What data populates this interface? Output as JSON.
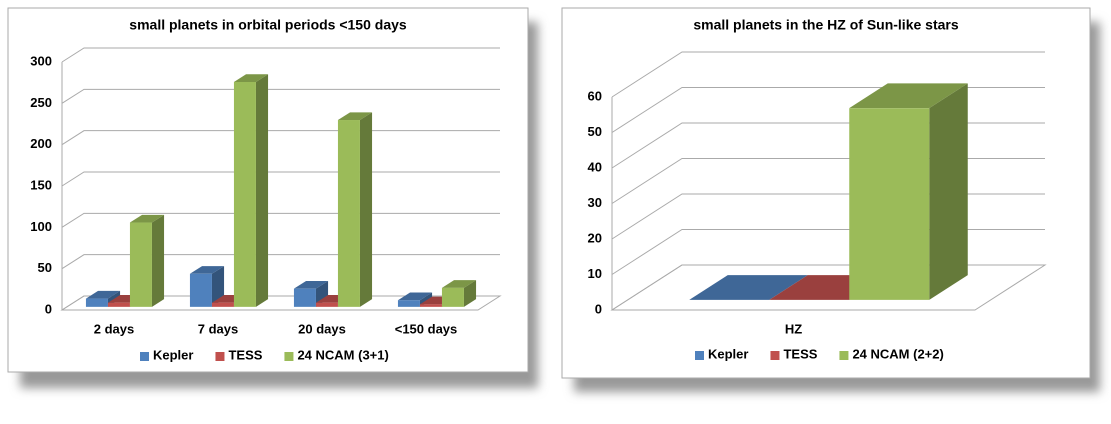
{
  "chart_data": [
    {
      "type": "bar3d",
      "title": "small planets in orbital periods <150 days",
      "categories": [
        "2 days",
        "7 days",
        "20 days",
        "<150 days"
      ],
      "series": [
        {
          "name": "Kepler",
          "color": "#4f81bd",
          "values": [
            10,
            40,
            22,
            8
          ]
        },
        {
          "name": "TESS",
          "color": "#c0504d",
          "values": [
            5,
            5,
            5,
            3
          ]
        },
        {
          "name": "24 NCAM (3+1)",
          "color": "#9bbb59",
          "values": [
            102,
            272,
            226,
            23
          ]
        }
      ],
      "ylim": [
        0,
        300
      ],
      "yticks": [
        0,
        50,
        100,
        150,
        200,
        250,
        300
      ],
      "grid": true,
      "legend": "bottom"
    },
    {
      "type": "bar3d",
      "title": "small planets in the HZ of Sun-like stars",
      "categories": [
        "HZ"
      ],
      "series": [
        {
          "name": "Kepler",
          "color": "#4f81bd",
          "values": [
            0
          ]
        },
        {
          "name": "TESS",
          "color": "#c0504d",
          "values": [
            0
          ]
        },
        {
          "name": "24 NCAM (2+2)",
          "color": "#9bbb59",
          "values": [
            54
          ]
        }
      ],
      "ylim": [
        0,
        60
      ],
      "yticks": [
        0,
        10,
        20,
        30,
        40,
        50,
        60
      ],
      "grid": true,
      "legend": "bottom"
    }
  ]
}
